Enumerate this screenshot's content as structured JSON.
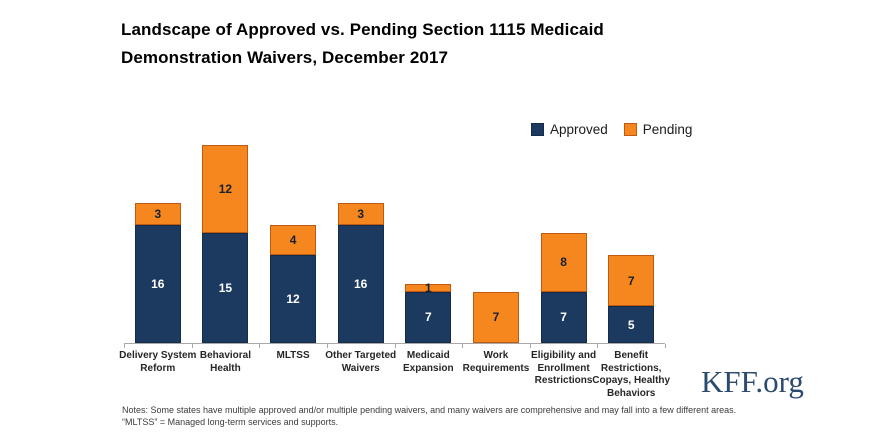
{
  "header": {
    "title_line1": "Landscape of Approved vs. Pending Section 1115 Medicaid",
    "title_line2": "Demonstration Waivers, December 2017"
  },
  "legend": {
    "items": [
      {
        "label": "Approved",
        "color": "#1C3A5F"
      },
      {
        "label": "Pending",
        "color": "#F6871F"
      }
    ]
  },
  "chart_data": {
    "type": "bar",
    "stacked": true,
    "title": "Landscape of Approved vs. Pending Section 1115 Medicaid Demonstration Waivers, December 2017",
    "categories": [
      "Delivery System\nReform",
      "Behavioral\nHealth",
      "MLTSS",
      "Other Targeted\nWaivers",
      "Medicaid\nExpansion",
      "Work\nRequirements",
      "Eligibility and\nEnrollment\nRestrictions",
      "Benefit\nRestrictions,\nCopays, Healthy\nBehaviors"
    ],
    "series": [
      {
        "name": "Approved",
        "values": [
          16,
          15,
          12,
          16,
          7,
          0,
          7,
          5
        ],
        "color": "#1C3A5F",
        "label_color": "#FFFFFF"
      },
      {
        "name": "Pending",
        "values": [
          3,
          12,
          4,
          3,
          1,
          7,
          8,
          7
        ],
        "color": "#F6871F",
        "label_color": "#15202E"
      }
    ],
    "totals": [
      19,
      27,
      16,
      19,
      8,
      7,
      15,
      12
    ],
    "ylim": [
      0,
      30
    ],
    "grid": false,
    "legend_position": "top-right",
    "xlabel": "",
    "ylabel": ""
  },
  "notes": {
    "line1": "Notes: Some states have multiple approved and/or multiple pending waivers, and many waivers are comprehensive and may fall into a few different areas.",
    "line2": "“MLTSS” = Managed long-term services and supports."
  },
  "footer": {
    "logo": "KFF.org"
  }
}
